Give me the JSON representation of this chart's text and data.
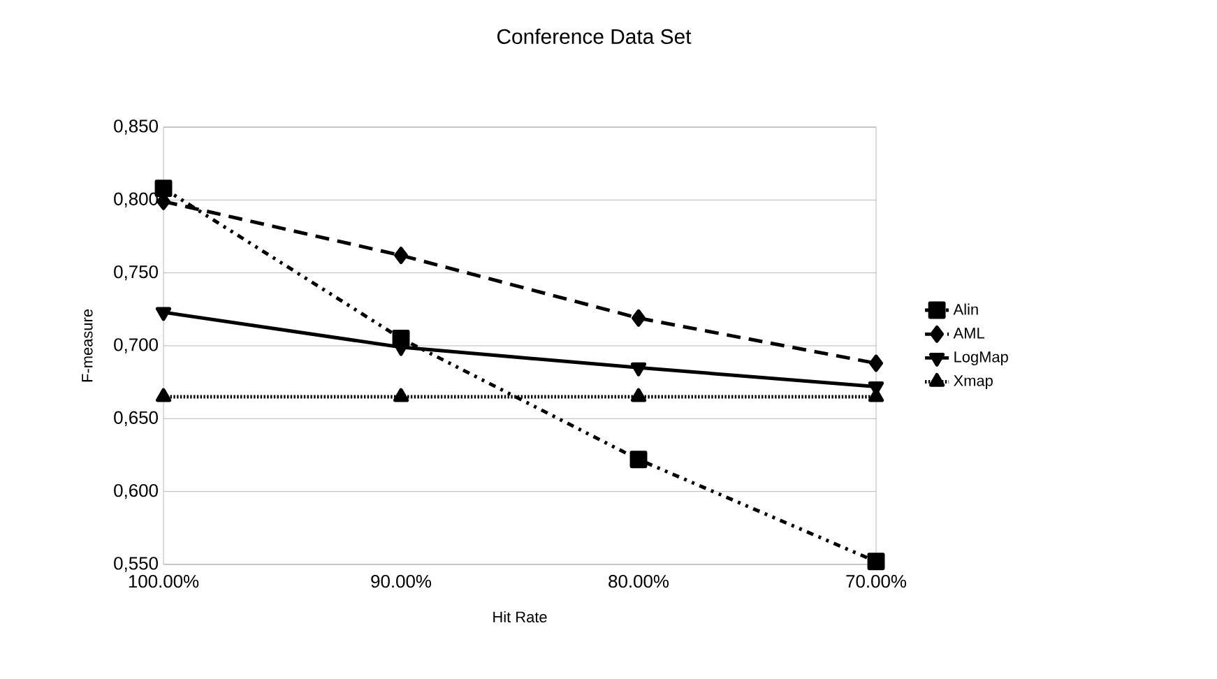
{
  "chart_data": {
    "type": "line",
    "title": "Conference Data Set",
    "xlabel": "Hit Rate",
    "ylabel": "F-measure",
    "categories": [
      "100.00%",
      "90.00%",
      "80.00%",
      "70.00%"
    ],
    "series": [
      {
        "name": "Alin",
        "color": "#000000",
        "values": [
          0.808,
          0.705,
          0.622,
          0.552
        ],
        "marker": "square",
        "line_style": "dashdot"
      },
      {
        "name": "AML",
        "color": "#000000",
        "values": [
          0.799,
          0.762,
          0.719,
          0.688
        ],
        "marker": "diamond",
        "line_style": "dashed"
      },
      {
        "name": "LogMap",
        "color": "#000000",
        "values": [
          0.723,
          0.699,
          0.685,
          0.672
        ],
        "marker": "triangle-down",
        "line_style": "solid"
      },
      {
        "name": "Xmap",
        "color": "#000000",
        "values": [
          0.665,
          0.665,
          0.665,
          0.665
        ],
        "marker": "triangle",
        "line_style": "dotted"
      }
    ],
    "ylim": [
      0.55,
      0.85
    ],
    "yticks": [
      {
        "value": 0.55,
        "label": "0,550"
      },
      {
        "value": 0.6,
        "label": "0,600"
      },
      {
        "value": 0.65,
        "label": "0,650"
      },
      {
        "value": 0.7,
        "label": "0,700"
      },
      {
        "value": 0.75,
        "label": "0,750"
      },
      {
        "value": 0.8,
        "label": "0,800"
      },
      {
        "value": 0.85,
        "label": "0,850"
      }
    ],
    "grid": "y",
    "legend": "right"
  }
}
